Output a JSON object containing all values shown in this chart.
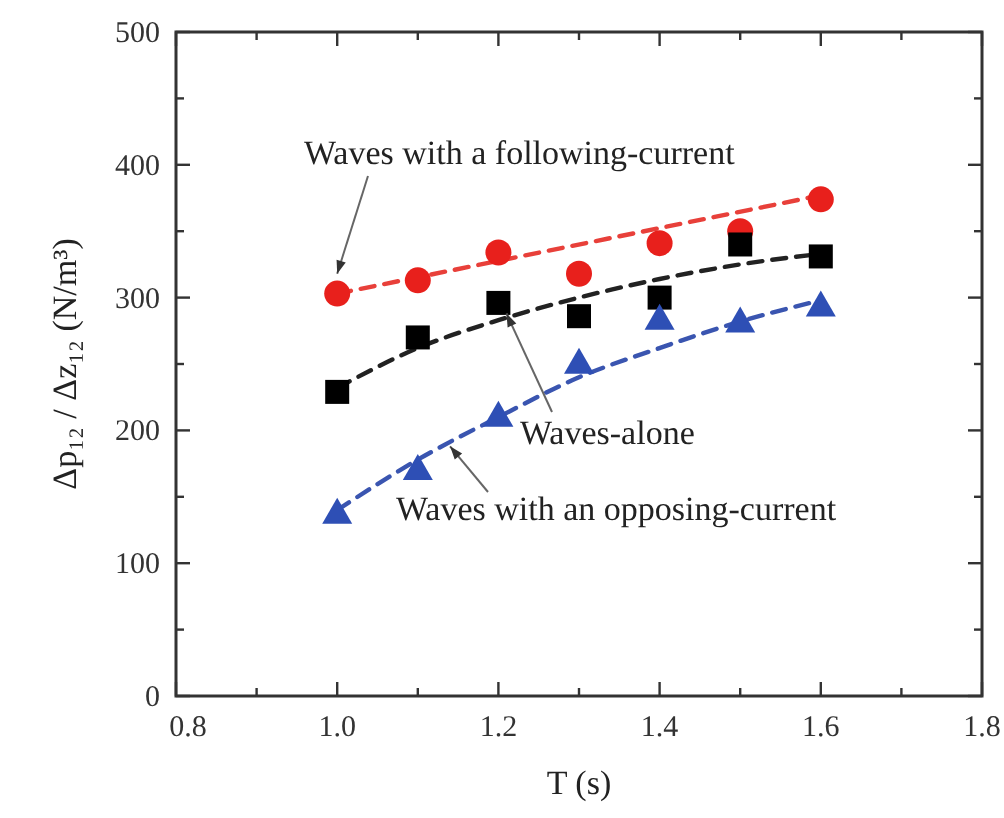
{
  "chart_data": {
    "type": "scatter",
    "xlabel": "T (s)",
    "ylabel": "Δp₁₂ / Δz₁₂ (N/m³)",
    "xlim": [
      0.8,
      1.8
    ],
    "ylim": [
      0,
      500
    ],
    "xticks": [
      0.8,
      {
        "value": 0.9,
        "label": null
      },
      "1.0",
      {
        "value": 1.1,
        "label": null
      },
      1.2,
      {
        "value": 1.3,
        "label": null
      },
      1.4,
      {
        "value": 1.5,
        "label": null
      },
      1.6,
      {
        "value": 1.7,
        "label": null
      },
      1.8
    ],
    "yticks": [
      0,
      {
        "value": 50,
        "label": null
      },
      100,
      {
        "value": 150,
        "label": null
      },
      200,
      {
        "value": 250,
        "label": null
      },
      300,
      {
        "value": 350,
        "label": null
      },
      400,
      {
        "value": 450,
        "label": null
      },
      500
    ],
    "grid": false,
    "series": [
      {
        "type": "line",
        "color": "#e8403a",
        "line_style": "dashed",
        "marker": "none",
        "x": [
          1.0,
          1.6
        ],
        "values": [
          303,
          377
        ]
      },
      {
        "type": "line",
        "color": "#222222",
        "line_style": "dashed",
        "marker": "none",
        "x": [
          1.0,
          1.1,
          1.2,
          1.3,
          1.4,
          1.5,
          1.6
        ],
        "values": [
          232,
          262,
          283,
          300,
          314,
          325,
          333
        ]
      },
      {
        "type": "line",
        "color": "#3a55b0",
        "line_style": "dashed",
        "marker": "none",
        "x": [
          1.0,
          1.1,
          1.2,
          1.3,
          1.4,
          1.5,
          1.6
        ],
        "values": [
          140,
          178,
          210,
          240,
          262,
          282,
          298
        ]
      },
      {
        "color": "#e8201c",
        "marker": "circle",
        "x": [
          1.0,
          1.1,
          1.2,
          1.3,
          1.4,
          1.5,
          1.6
        ],
        "values": [
          303,
          313,
          334,
          318,
          341,
          350,
          374
        ]
      },
      {
        "color": "#000000",
        "marker": "square",
        "x": [
          1.0,
          1.1,
          1.2,
          1.3,
          1.4,
          1.5,
          1.6
        ],
        "values": [
          229,
          270,
          296,
          286,
          300,
          340,
          331
        ]
      },
      {
        "color": "#2e4fb5",
        "marker": "triangle",
        "x": [
          1.0,
          1.1,
          1.2,
          1.3,
          1.4,
          1.5,
          1.6
        ],
        "values": [
          138,
          171,
          211,
          251,
          284,
          282,
          294
        ]
      }
    ],
    "annotations": [
      {
        "text": "Waves with a following-current",
        "x": 1.0,
        "y": 318
      },
      {
        "text": "Waves-alone",
        "x": 1.21,
        "y": 288
      },
      {
        "text": "Waves with an opposing-current",
        "x": 1.14,
        "y": 188
      }
    ]
  }
}
